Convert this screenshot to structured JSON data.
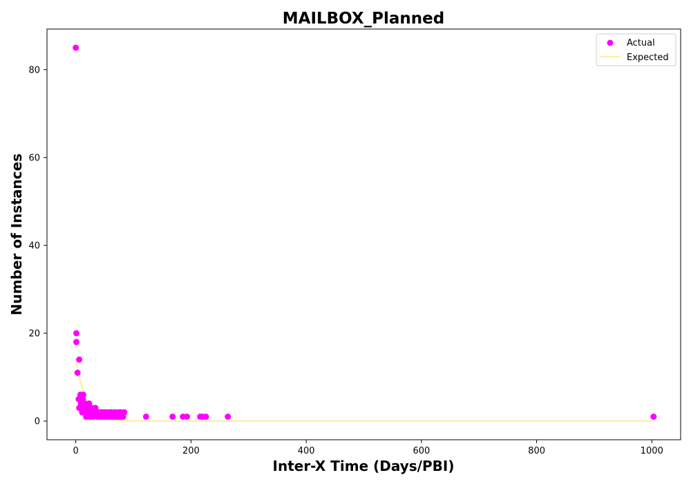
{
  "chart_data": {
    "type": "scatter",
    "title": "MAILBOX_Planned",
    "xlabel": "Inter-X Time (Days/PBI)",
    "ylabel": "Number of Instances",
    "xlim": [
      -50,
      1050
    ],
    "ylim": [
      -4.25,
      89.25
    ],
    "xticks": [
      0,
      200,
      400,
      600,
      800,
      1000
    ],
    "yticks": [
      0,
      20,
      40,
      60,
      80
    ],
    "grid": false,
    "legend": {
      "position": "top-right",
      "entries": [
        "Actual",
        "Expected"
      ]
    },
    "colors": {
      "actual": "#ff00ff",
      "expected": "#ffe680"
    },
    "series": [
      {
        "name": "Actual",
        "kind": "scatter",
        "points": [
          [
            0,
            85
          ],
          [
            1,
            20
          ],
          [
            1,
            18
          ],
          [
            3,
            11
          ],
          [
            6,
            14
          ],
          [
            5,
            5
          ],
          [
            6,
            3
          ],
          [
            8,
            6
          ],
          [
            9,
            4
          ],
          [
            10,
            3
          ],
          [
            11,
            2
          ],
          [
            12,
            5
          ],
          [
            13,
            6
          ],
          [
            14,
            3
          ],
          [
            15,
            2
          ],
          [
            16,
            4
          ],
          [
            17,
            3
          ],
          [
            18,
            1
          ],
          [
            19,
            2
          ],
          [
            20,
            3
          ],
          [
            21,
            2
          ],
          [
            22,
            3
          ],
          [
            23,
            4
          ],
          [
            24,
            2
          ],
          [
            25,
            1
          ],
          [
            26,
            2
          ],
          [
            27,
            3
          ],
          [
            28,
            2
          ],
          [
            30,
            1
          ],
          [
            32,
            2
          ],
          [
            34,
            3
          ],
          [
            36,
            2
          ],
          [
            38,
            1
          ],
          [
            40,
            2
          ],
          [
            42,
            1
          ],
          [
            44,
            2
          ],
          [
            46,
            1
          ],
          [
            48,
            2
          ],
          [
            50,
            1
          ],
          [
            52,
            2
          ],
          [
            55,
            1
          ],
          [
            58,
            2
          ],
          [
            60,
            1
          ],
          [
            62,
            2
          ],
          [
            64,
            1
          ],
          [
            66,
            1
          ],
          [
            68,
            2
          ],
          [
            70,
            1
          ],
          [
            72,
            1
          ],
          [
            74,
            2
          ],
          [
            76,
            1
          ],
          [
            78,
            2
          ],
          [
            80,
            1
          ],
          [
            82,
            1
          ],
          [
            84,
            2
          ],
          [
            122,
            1
          ],
          [
            168,
            1
          ],
          [
            186,
            1
          ],
          [
            193,
            1
          ],
          [
            216,
            1
          ],
          [
            220,
            1
          ],
          [
            226,
            1
          ],
          [
            264,
            1
          ],
          [
            1003,
            1
          ]
        ]
      },
      {
        "name": "Expected",
        "kind": "line",
        "points": [
          [
            0,
            14.2
          ],
          [
            4,
            11.3
          ],
          [
            8,
            8.9
          ],
          [
            12,
            7.1
          ],
          [
            16,
            5.6
          ],
          [
            20,
            4.4
          ],
          [
            25,
            3.3
          ],
          [
            30,
            2.4
          ],
          [
            35,
            1.8
          ],
          [
            40,
            1.3
          ],
          [
            50,
            0.7
          ],
          [
            60,
            0.4
          ],
          [
            70,
            0.2
          ],
          [
            80,
            0.1
          ],
          [
            100,
            0.03
          ],
          [
            150,
            0
          ],
          [
            300,
            0
          ],
          [
            600,
            0
          ],
          [
            1003,
            0
          ]
        ]
      }
    ]
  }
}
